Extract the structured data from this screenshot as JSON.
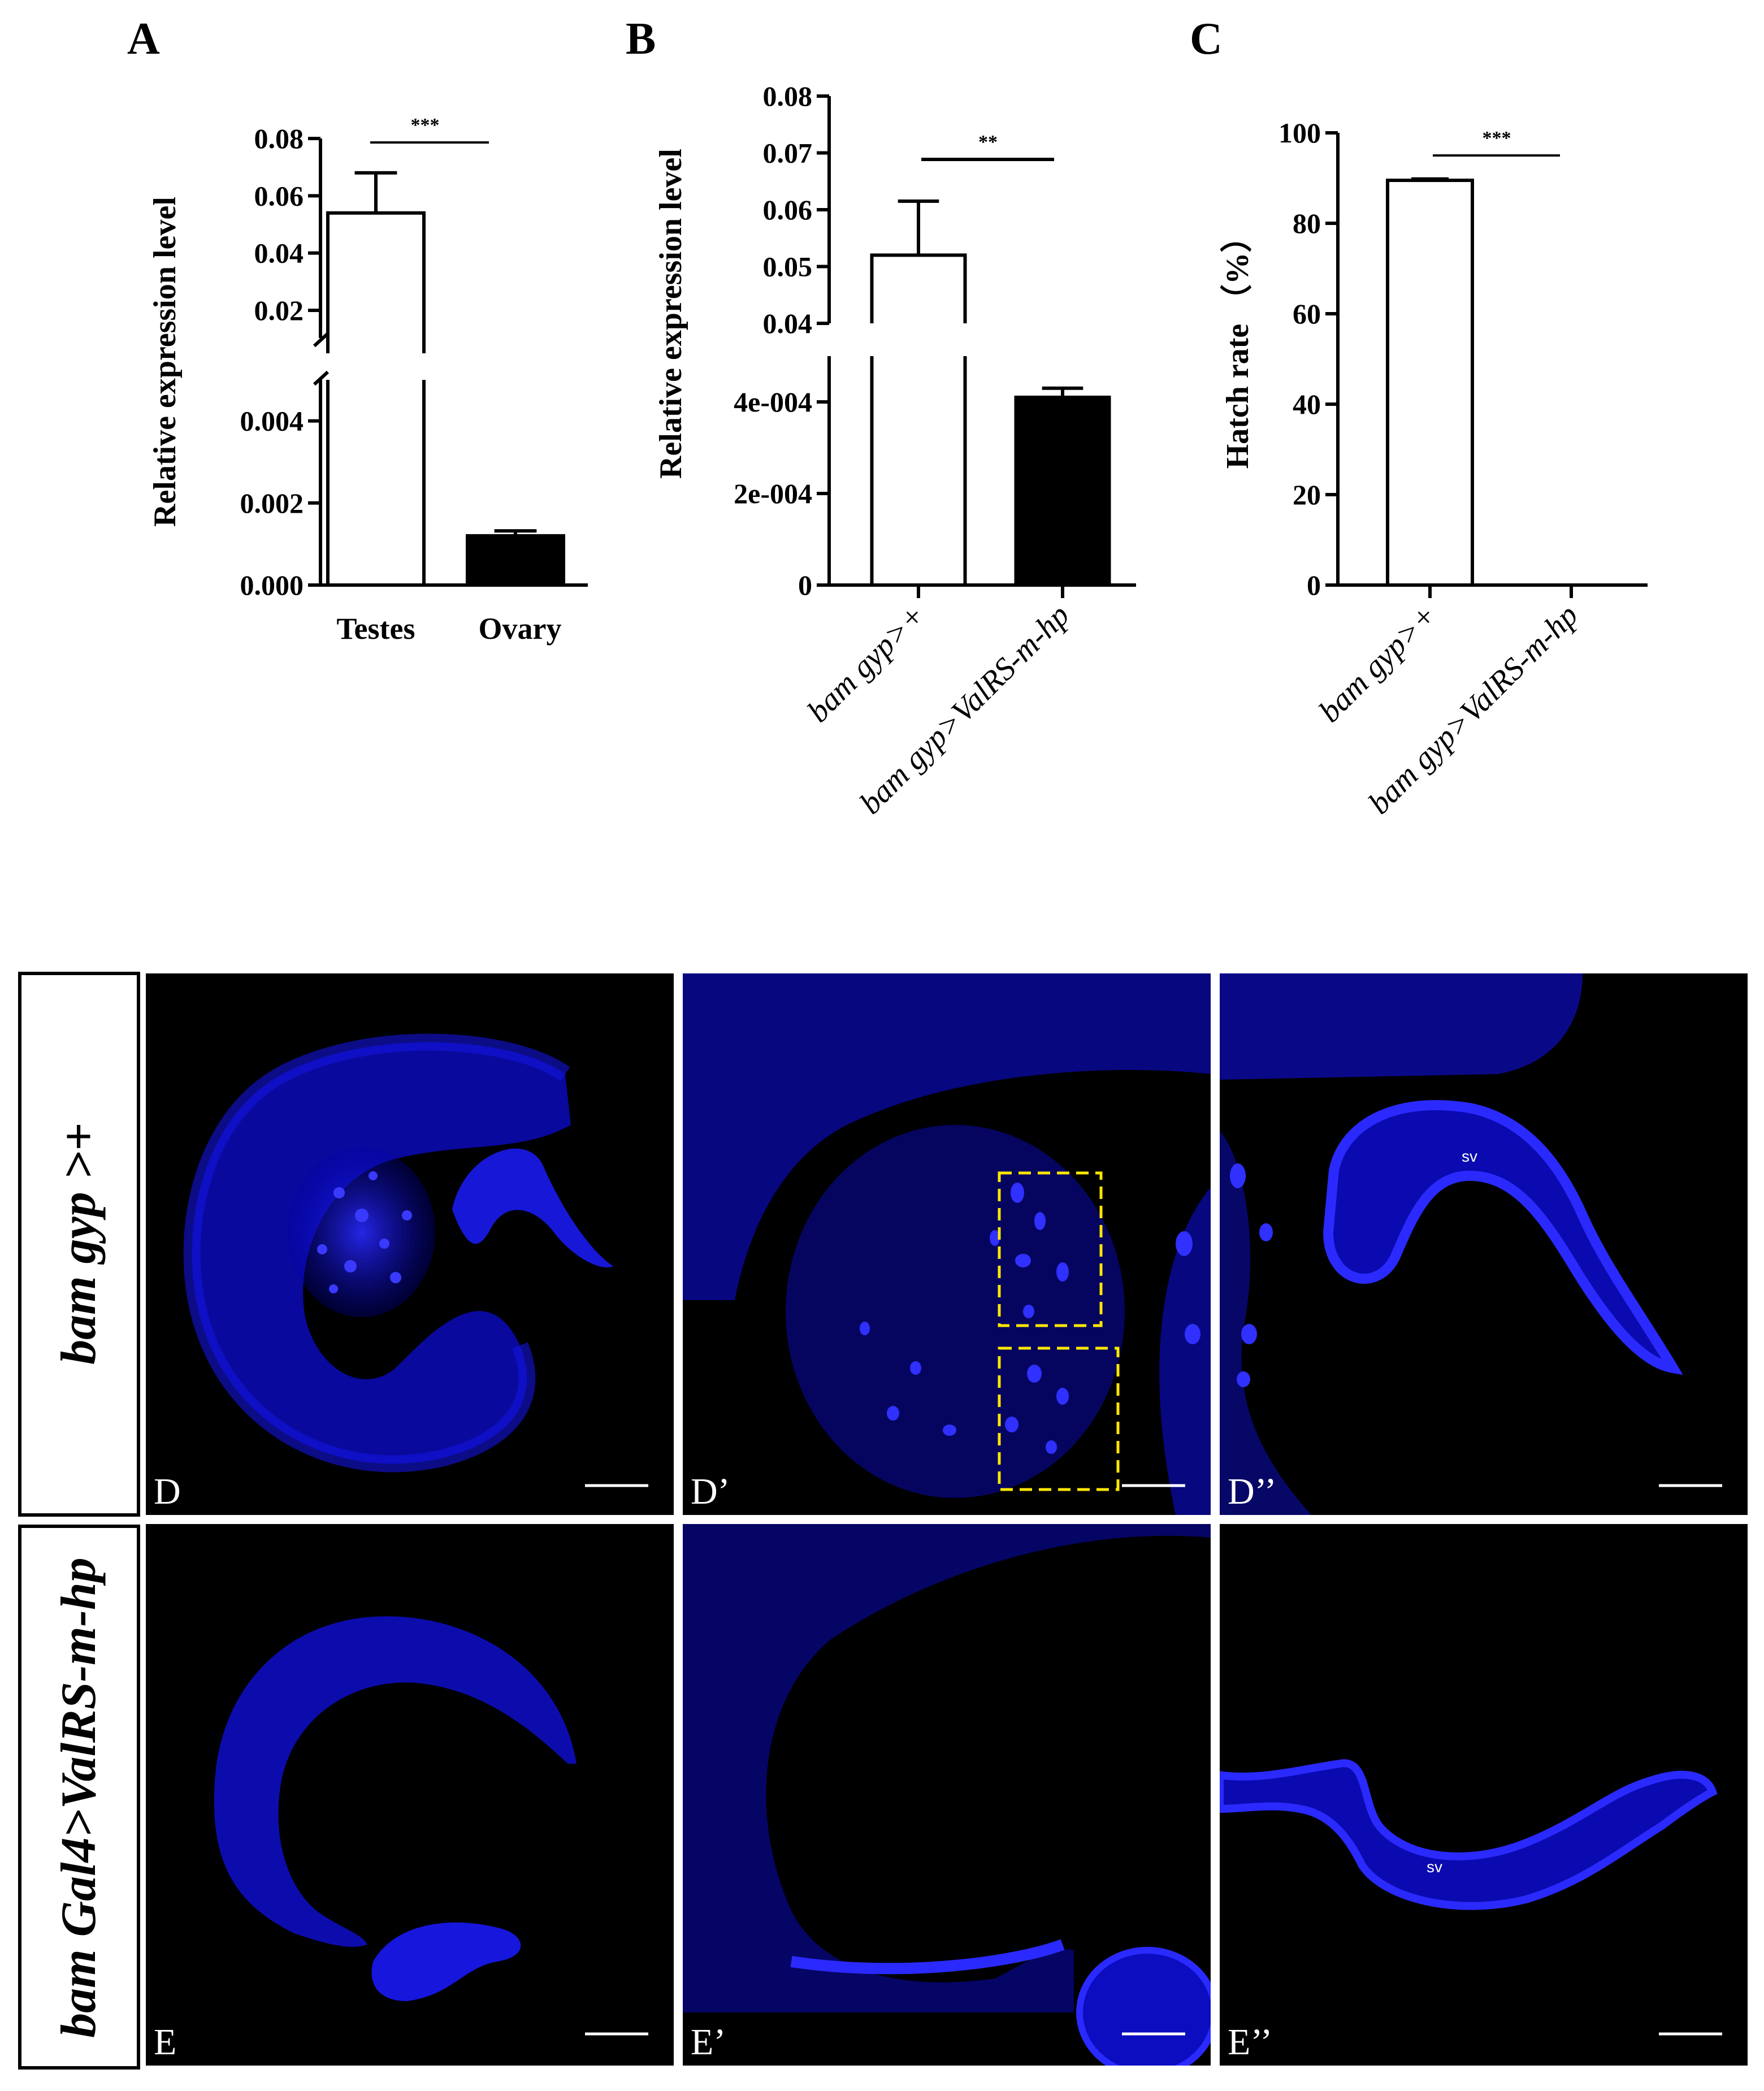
{
  "chart_data": [
    {
      "panel": "A",
      "type": "bar",
      "categories": [
        "Testes",
        "Ovary"
      ],
      "values": [
        0.054,
        0.0012
      ],
      "errors": [
        0.014,
        0.00012
      ],
      "bar_colors": [
        "#ffffff",
        "#000000"
      ],
      "ylabel": "Relative expression level",
      "broken_axis": true,
      "ylim_lower": [
        0,
        0.005
      ],
      "ylim_upper": [
        0.005,
        0.08
      ],
      "yticks_lower": [
        "0.000",
        "0.002",
        "0.004"
      ],
      "yticks_upper": [
        "0.02",
        "0.04",
        "0.06",
        "0.08"
      ],
      "significance": "***"
    },
    {
      "panel": "B",
      "type": "bar",
      "categories": [
        "bam gyp>+",
        "bam gyp>ValRS-m-hp"
      ],
      "values": [
        0.052,
        0.00041
      ],
      "errors": [
        0.0095,
        2e-05
      ],
      "bar_colors": [
        "#ffffff",
        "#000000"
      ],
      "ylabel": "Relative expression level",
      "broken_axis": true,
      "ylim_lower": [
        0,
        0.0005
      ],
      "ylim_upper": [
        0.04,
        0.08
      ],
      "yticks_lower": [
        "0",
        "2e-004",
        "4e-004"
      ],
      "yticks_upper": [
        "0.04",
        "0.05",
        "0.06",
        "0.07",
        "0.08"
      ],
      "significance": "**"
    },
    {
      "panel": "C",
      "type": "bar",
      "categories": [
        "bam gyp>+",
        "bam gyp>ValRS-m-hp"
      ],
      "values": [
        89.5,
        0
      ],
      "errors": [
        0.3,
        0
      ],
      "bar_colors": [
        "#ffffff",
        "#000000"
      ],
      "ylabel": "Hatch rate （%）",
      "ylim": [
        0,
        100
      ],
      "yticks": [
        "0",
        "20",
        "40",
        "60",
        "80",
        "100"
      ],
      "significance": "***"
    }
  ],
  "images": {
    "row_labels": [
      "bam gyp >+",
      "bam Gal4>ValRS-m-hp"
    ],
    "panels": [
      {
        "label": "D"
      },
      {
        "label": "D’"
      },
      {
        "label": "D’’"
      },
      {
        "label": "E"
      },
      {
        "label": "E’"
      },
      {
        "label": "E’’"
      }
    ],
    "sv_label": "sv",
    "stain_color": "#1a1aff",
    "highlight_color": "#ffe600"
  }
}
